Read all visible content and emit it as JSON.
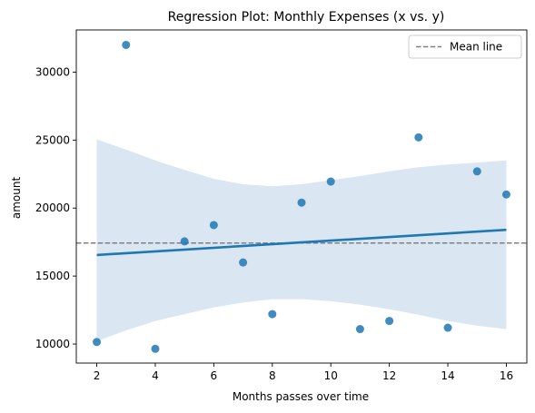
{
  "chart_data": {
    "type": "scatter",
    "title": "Regression Plot: Monthly Expenses (x vs. y)",
    "xlabel": "Months passes over time",
    "ylabel": "amount",
    "xlim": [
      1.3,
      16.7
    ],
    "ylim": [
      8600,
      33100
    ],
    "xticks": [
      2,
      4,
      6,
      8,
      10,
      12,
      14,
      16
    ],
    "yticks": [
      10000,
      15000,
      20000,
      25000,
      30000
    ],
    "points": [
      {
        "x": 2,
        "y": 10150
      },
      {
        "x": 3,
        "y": 32000
      },
      {
        "x": 4,
        "y": 9650
      },
      {
        "x": 5,
        "y": 17550
      },
      {
        "x": 6,
        "y": 18750
      },
      {
        "x": 7,
        "y": 16000
      },
      {
        "x": 8,
        "y": 12200
      },
      {
        "x": 9,
        "y": 20400
      },
      {
        "x": 10,
        "y": 21950
      },
      {
        "x": 11,
        "y": 11100
      },
      {
        "x": 12,
        "y": 11700
      },
      {
        "x": 13,
        "y": 25200
      },
      {
        "x": 14,
        "y": 11200
      },
      {
        "x": 15,
        "y": 22700
      },
      {
        "x": 16,
        "y": 21000
      }
    ],
    "regression_line": {
      "x": [
        2,
        16
      ],
      "y": [
        16550,
        18400
      ]
    },
    "confidence_band": {
      "x": [
        2,
        3,
        4,
        5,
        6,
        7,
        8,
        9,
        10,
        11,
        12,
        13,
        14,
        15,
        16
      ],
      "upper": [
        25050,
        24300,
        23500,
        22800,
        22150,
        21750,
        21600,
        21750,
        22050,
        22350,
        22700,
        23000,
        23200,
        23350,
        23500
      ],
      "lower": [
        10200,
        11000,
        11700,
        12200,
        12700,
        13050,
        13300,
        13300,
        13150,
        12900,
        12550,
        12150,
        11700,
        11350,
        11100
      ]
    },
    "mean_line": {
      "y": 17430,
      "label": "Mean line"
    },
    "legend": {
      "position": "top-right",
      "entries": [
        "Mean line"
      ]
    },
    "colors": {
      "points": "#1f77b4",
      "regression": "#1f77b4",
      "band": "#dae6f2",
      "mean_line": "#808080"
    }
  }
}
